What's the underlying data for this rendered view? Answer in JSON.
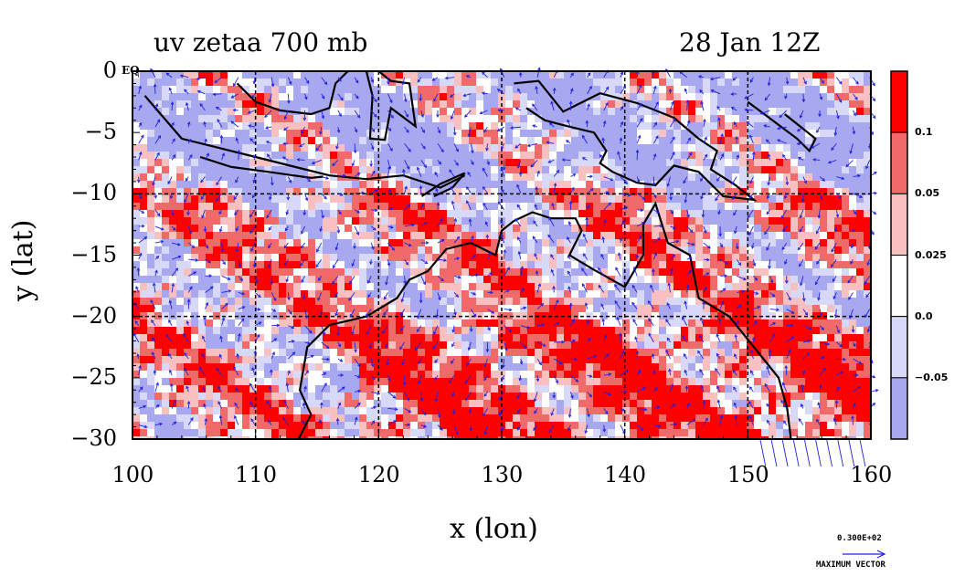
{
  "title_left": "uv zetaa 700 mb",
  "title_right": "28 Jan 12Z",
  "eq_label": "EQ",
  "x_axis": {
    "label": "x (lon)",
    "ticks": [
      "100",
      "110",
      "120",
      "130",
      "140",
      "150",
      "160"
    ],
    "range": [
      100,
      160
    ]
  },
  "y_axis": {
    "label": "y (lat)",
    "ticks": [
      "0",
      "−5",
      "−10",
      "−15",
      "−20",
      "−25",
      "−30"
    ],
    "range": [
      -30,
      0
    ]
  },
  "colorbar": {
    "levels": [
      "0.1",
      "0.05",
      "0.025",
      "0.0",
      "−0.05"
    ],
    "colors": [
      "#ff0000",
      "#f06a6a",
      "#f8c0c0",
      "#ffffff",
      "#d8d8f8",
      "#a8a8f0"
    ]
  },
  "vector_key": {
    "value": "0.300E+02",
    "label": "MAXIMUM VECTOR"
  },
  "map": {
    "grid_lons": [
      110,
      120,
      130,
      140,
      150
    ],
    "grid_lats": [
      -10,
      -20
    ],
    "coast_color": "#000000",
    "vector_color": "#2020e0"
  }
}
